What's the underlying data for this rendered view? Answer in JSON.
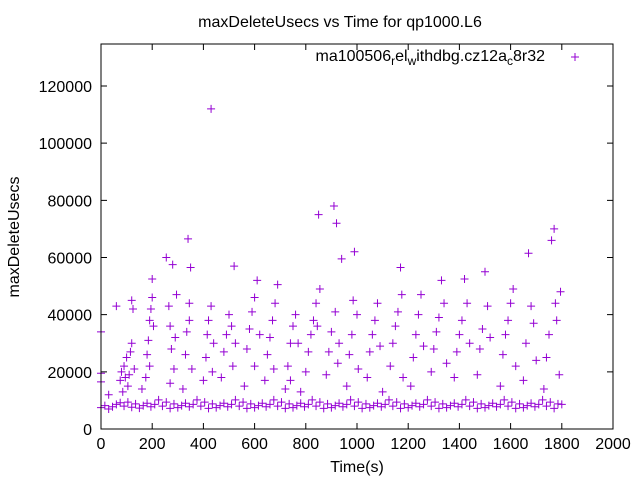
{
  "chart_data": {
    "type": "scatter",
    "title": "maxDeleteUsecs vs Time for qp1000.L6",
    "xlabel": "Time(s)",
    "ylabel": "maxDeleteUsecs",
    "xlim": [
      0,
      2000
    ],
    "ylim": [
      0,
      134700
    ],
    "xticks": [
      0,
      200,
      400,
      600,
      800,
      1000,
      1200,
      1400,
      1600,
      1800,
      2000
    ],
    "yticks": [
      0,
      20000,
      40000,
      60000,
      80000,
      100000,
      120000
    ],
    "grid": false,
    "legend_position": "top-right",
    "series": [
      {
        "name": "ma100506",
        "legend_parts": [
          "ma100506",
          "r",
          "el",
          "w",
          "ithdbg.cz12a",
          "c",
          "8r32"
        ],
        "color": "#9400d3",
        "marker": "plus",
        "points": [
          [
            0,
            7500
          ],
          [
            15,
            8200
          ],
          [
            30,
            7000
          ],
          [
            45,
            7800
          ],
          [
            60,
            8600
          ],
          [
            75,
            9200
          ],
          [
            90,
            8000
          ],
          [
            105,
            9400
          ],
          [
            120,
            7600
          ],
          [
            135,
            8800
          ],
          [
            150,
            7300
          ],
          [
            165,
            8200
          ],
          [
            180,
            9000
          ],
          [
            195,
            7800
          ],
          [
            210,
            8600
          ],
          [
            225,
            10200
          ],
          [
            240,
            8000
          ],
          [
            255,
            9400
          ],
          [
            270,
            7200
          ],
          [
            285,
            8800
          ],
          [
            300,
            7500
          ],
          [
            315,
            8200
          ],
          [
            330,
            9000
          ],
          [
            345,
            7800
          ],
          [
            360,
            8600
          ],
          [
            375,
            10200
          ],
          [
            390,
            8000
          ],
          [
            405,
            9400
          ],
          [
            420,
            7200
          ],
          [
            435,
            8800
          ],
          [
            450,
            7500
          ],
          [
            465,
            8200
          ],
          [
            480,
            9000
          ],
          [
            495,
            7800
          ],
          [
            510,
            8600
          ],
          [
            525,
            10200
          ],
          [
            540,
            8000
          ],
          [
            555,
            9400
          ],
          [
            570,
            7200
          ],
          [
            585,
            8800
          ],
          [
            600,
            7500
          ],
          [
            615,
            8200
          ],
          [
            630,
            9000
          ],
          [
            645,
            7800
          ],
          [
            660,
            8600
          ],
          [
            675,
            10200
          ],
          [
            690,
            8000
          ],
          [
            705,
            9400
          ],
          [
            720,
            7200
          ],
          [
            735,
            8800
          ],
          [
            750,
            7500
          ],
          [
            765,
            8200
          ],
          [
            780,
            9000
          ],
          [
            795,
            7800
          ],
          [
            810,
            8600
          ],
          [
            825,
            10200
          ],
          [
            840,
            8000
          ],
          [
            855,
            9400
          ],
          [
            870,
            7200
          ],
          [
            885,
            8800
          ],
          [
            900,
            7500
          ],
          [
            915,
            8200
          ],
          [
            930,
            9000
          ],
          [
            945,
            7800
          ],
          [
            960,
            8600
          ],
          [
            975,
            10200
          ],
          [
            990,
            8000
          ],
          [
            1005,
            9400
          ],
          [
            1020,
            7200
          ],
          [
            1035,
            8800
          ],
          [
            1050,
            7500
          ],
          [
            1065,
            8200
          ],
          [
            1080,
            9000
          ],
          [
            1095,
            7800
          ],
          [
            1110,
            8600
          ],
          [
            1125,
            10200
          ],
          [
            1140,
            8000
          ],
          [
            1155,
            9400
          ],
          [
            1170,
            7200
          ],
          [
            1185,
            8800
          ],
          [
            1200,
            7500
          ],
          [
            1215,
            8200
          ],
          [
            1230,
            9000
          ],
          [
            1245,
            7800
          ],
          [
            1260,
            8600
          ],
          [
            1275,
            10200
          ],
          [
            1290,
            8000
          ],
          [
            1305,
            9400
          ],
          [
            1320,
            7200
          ],
          [
            1335,
            8800
          ],
          [
            1350,
            7500
          ],
          [
            1365,
            8200
          ],
          [
            1380,
            9000
          ],
          [
            1395,
            7800
          ],
          [
            1410,
            8600
          ],
          [
            1425,
            10200
          ],
          [
            1440,
            8000
          ],
          [
            1455,
            9400
          ],
          [
            1470,
            7200
          ],
          [
            1485,
            8800
          ],
          [
            1500,
            7500
          ],
          [
            1515,
            8200
          ],
          [
            1530,
            9000
          ],
          [
            1545,
            7800
          ],
          [
            1560,
            8600
          ],
          [
            1575,
            10200
          ],
          [
            1590,
            8000
          ],
          [
            1605,
            9400
          ],
          [
            1620,
            7200
          ],
          [
            1635,
            8800
          ],
          [
            1650,
            7500
          ],
          [
            1665,
            8200
          ],
          [
            1680,
            9000
          ],
          [
            1695,
            7800
          ],
          [
            1710,
            8600
          ],
          [
            1725,
            10200
          ],
          [
            1740,
            8000
          ],
          [
            1755,
            9400
          ],
          [
            1770,
            7200
          ],
          [
            1785,
            8800
          ],
          [
            1800,
            8600
          ],
          [
            0,
            16500
          ],
          [
            0,
            19500
          ],
          [
            0,
            34000
          ],
          [
            30,
            12000
          ],
          [
            60,
            43000
          ],
          [
            75,
            17000
          ],
          [
            80,
            20000
          ],
          [
            85,
            13000
          ],
          [
            90,
            22000
          ],
          [
            95,
            18000
          ],
          [
            100,
            25000
          ],
          [
            105,
            15000
          ],
          [
            110,
            19000
          ],
          [
            115,
            27000
          ],
          [
            120,
            45000
          ],
          [
            125,
            42000
          ],
          [
            120,
            30000
          ],
          [
            130,
            21000
          ],
          [
            160,
            14000
          ],
          [
            175,
            18000
          ],
          [
            180,
            26000
          ],
          [
            185,
            31000
          ],
          [
            190,
            38000
          ],
          [
            195,
            42000
          ],
          [
            200,
            46000
          ],
          [
            205,
            36000
          ],
          [
            190,
            22000
          ],
          [
            200,
            52500
          ],
          [
            255,
            60000
          ],
          [
            265,
            43000
          ],
          [
            270,
            36000
          ],
          [
            275,
            28000
          ],
          [
            280,
            57500
          ],
          [
            285,
            21000
          ],
          [
            270,
            16000
          ],
          [
            290,
            32000
          ],
          [
            295,
            47000
          ],
          [
            320,
            14000
          ],
          [
            330,
            26000
          ],
          [
            335,
            34000
          ],
          [
            340,
            66500
          ],
          [
            345,
            38000
          ],
          [
            350,
            56500
          ],
          [
            345,
            44000
          ],
          [
            355,
            21000
          ],
          [
            400,
            17000
          ],
          [
            410,
            25000
          ],
          [
            415,
            33000
          ],
          [
            420,
            38000
          ],
          [
            430,
            112000
          ],
          [
            430,
            43000
          ],
          [
            440,
            30000
          ],
          [
            435,
            20000
          ],
          [
            470,
            18000
          ],
          [
            480,
            27000
          ],
          [
            490,
            33000
          ],
          [
            500,
            40000
          ],
          [
            510,
            36000
          ],
          [
            520,
            57000
          ],
          [
            525,
            30000
          ],
          [
            515,
            22000
          ],
          [
            560,
            15000
          ],
          [
            570,
            28000
          ],
          [
            580,
            35000
          ],
          [
            590,
            41000
          ],
          [
            600,
            46000
          ],
          [
            610,
            52000
          ],
          [
            620,
            33000
          ],
          [
            600,
            22000
          ],
          [
            640,
            17000
          ],
          [
            650,
            26000
          ],
          [
            660,
            32000
          ],
          [
            670,
            38000
          ],
          [
            680,
            44000
          ],
          [
            690,
            50500
          ],
          [
            675,
            21000
          ],
          [
            720,
            14000
          ],
          [
            730,
            22000
          ],
          [
            740,
            30000
          ],
          [
            750,
            36000
          ],
          [
            760,
            40000
          ],
          [
            770,
            30000
          ],
          [
            740,
            17000
          ],
          [
            780,
            13000
          ],
          [
            800,
            20000
          ],
          [
            810,
            27000
          ],
          [
            820,
            33000
          ],
          [
            830,
            38000
          ],
          [
            840,
            44000
          ],
          [
            850,
            75000
          ],
          [
            855,
            49000
          ],
          [
            845,
            36000
          ],
          [
            880,
            19000
          ],
          [
            890,
            27000
          ],
          [
            900,
            34000
          ],
          [
            910,
            78000
          ],
          [
            920,
            72000
          ],
          [
            915,
            41000
          ],
          [
            930,
            30000
          ],
          [
            940,
            59500
          ],
          [
            925,
            23000
          ],
          [
            960,
            15000
          ],
          [
            970,
            26000
          ],
          [
            980,
            33000
          ],
          [
            990,
            62000
          ],
          [
            1000,
            40000
          ],
          [
            985,
            45000
          ],
          [
            1005,
            21000
          ],
          [
            1040,
            18000
          ],
          [
            1050,
            27000
          ],
          [
            1060,
            33000
          ],
          [
            1070,
            38000
          ],
          [
            1080,
            44000
          ],
          [
            1090,
            29000
          ],
          [
            1100,
            13000
          ],
          [
            1130,
            22000
          ],
          [
            1140,
            30000
          ],
          [
            1150,
            36000
          ],
          [
            1160,
            41000
          ],
          [
            1170,
            56500
          ],
          [
            1175,
            47000
          ],
          [
            1180,
            18000
          ],
          [
            1210,
            15000
          ],
          [
            1220,
            25000
          ],
          [
            1230,
            33000
          ],
          [
            1240,
            40000
          ],
          [
            1250,
            47000
          ],
          [
            1260,
            29000
          ],
          [
            1290,
            20000
          ],
          [
            1300,
            28000
          ],
          [
            1310,
            34000
          ],
          [
            1320,
            39000
          ],
          [
            1330,
            52000
          ],
          [
            1340,
            44000
          ],
          [
            1350,
            23000
          ],
          [
            1380,
            18000
          ],
          [
            1390,
            27000
          ],
          [
            1400,
            33000
          ],
          [
            1410,
            38000
          ],
          [
            1420,
            52500
          ],
          [
            1430,
            44000
          ],
          [
            1440,
            30000
          ],
          [
            1470,
            19000
          ],
          [
            1480,
            28000
          ],
          [
            1490,
            35000
          ],
          [
            1500,
            55000
          ],
          [
            1510,
            43000
          ],
          [
            1520,
            32000
          ],
          [
            1560,
            15000
          ],
          [
            1570,
            26000
          ],
          [
            1580,
            33000
          ],
          [
            1590,
            38000
          ],
          [
            1600,
            44000
          ],
          [
            1610,
            49000
          ],
          [
            1620,
            22000
          ],
          [
            1650,
            17000
          ],
          [
            1660,
            30000
          ],
          [
            1670,
            61500
          ],
          [
            1680,
            43000
          ],
          [
            1690,
            37000
          ],
          [
            1700,
            24000
          ],
          [
            1730,
            14000
          ],
          [
            1740,
            25000
          ],
          [
            1750,
            33000
          ],
          [
            1760,
            66000
          ],
          [
            1770,
            70000
          ],
          [
            1775,
            44000
          ],
          [
            1780,
            38000
          ],
          [
            1790,
            19000
          ],
          [
            1795,
            48000
          ]
        ]
      }
    ]
  }
}
